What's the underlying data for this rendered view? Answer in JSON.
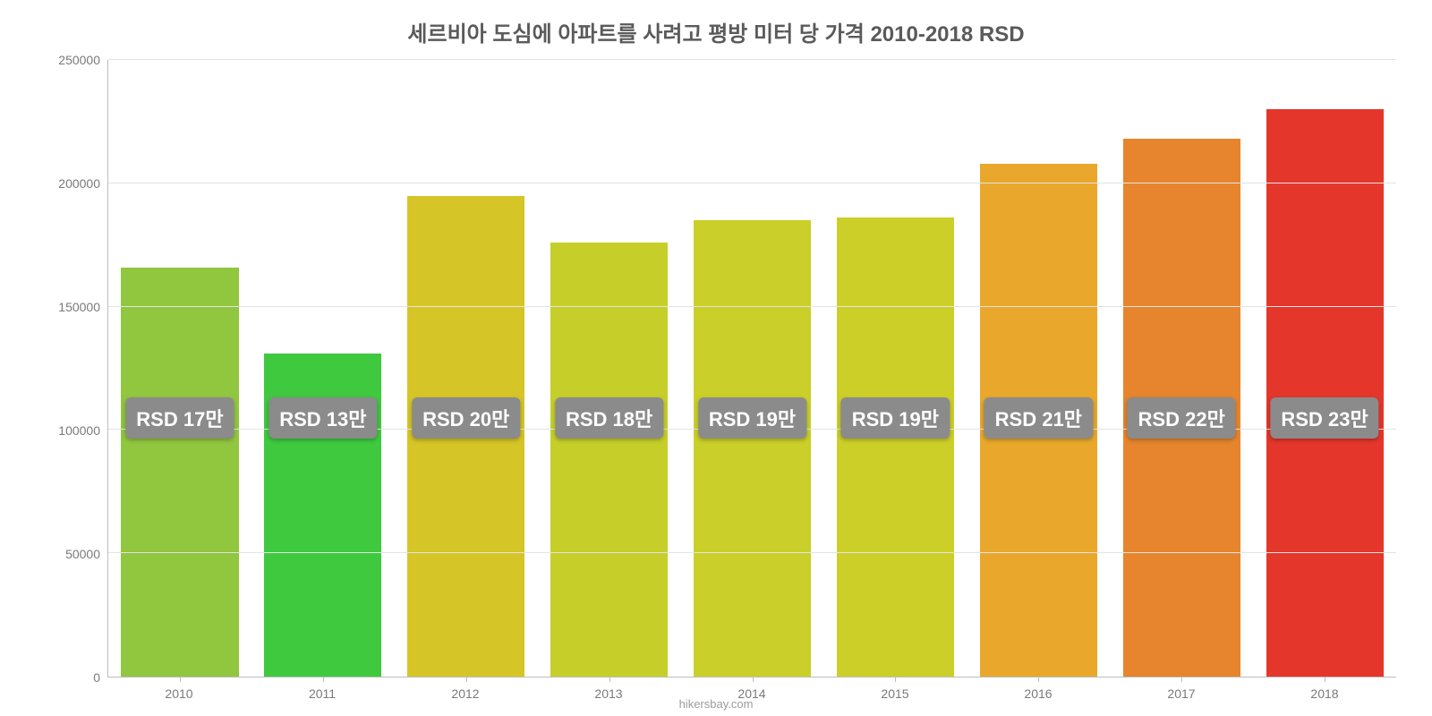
{
  "chart": {
    "type": "bar",
    "title": "세르비아 도심에 아파트를 사려고 평방 미터 당 가격 2010-2018 RSD",
    "title_fontsize": 24,
    "title_color": "#5a5a5a",
    "source": "hikersbay.com",
    "source_fontsize": 13,
    "source_color": "#9c9c9c",
    "background_color": "#ffffff",
    "grid_color": "#e3e3e3",
    "axis_color": "#bdbdbd",
    "tick_label_color": "#7a7a7a",
    "tick_label_fontsize": 14,
    "bar_width_ratio": 0.82,
    "ylim": [
      0,
      250000
    ],
    "yticks": [
      0,
      50000,
      100000,
      150000,
      200000,
      250000
    ],
    "categories": [
      "2010",
      "2011",
      "2012",
      "2013",
      "2014",
      "2015",
      "2016",
      "2017",
      "2018"
    ],
    "values": [
      166000,
      131000,
      195000,
      176000,
      185000,
      186000,
      208000,
      218000,
      230000
    ],
    "value_labels": [
      "RSD 17만",
      "RSD 13만",
      "RSD 20만",
      "RSD 18만",
      "RSD 19만",
      "RSD 19만",
      "RSD 21만",
      "RSD 22만",
      "RSD 23만"
    ],
    "value_label_fontsize": 22,
    "value_label_bg": "#8b8b8b",
    "value_label_color": "#ffffff",
    "bar_colors": [
      "#91c63f",
      "#3ec93f",
      "#d6c527",
      "#c6cf29",
      "#cacf29",
      "#cdcf29",
      "#e9a82b",
      "#e6852d",
      "#e4362b"
    ],
    "label_baseline_value": 105000
  }
}
